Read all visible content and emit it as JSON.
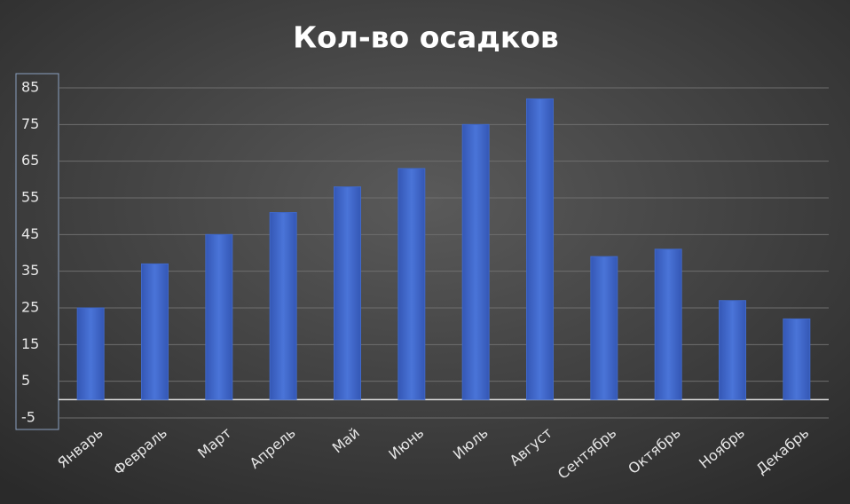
{
  "chart_data": {
    "type": "bar",
    "title": "Кол-во осадков",
    "categories": [
      "Январь",
      "Февраль",
      "Март",
      "Апрель",
      "Май",
      "Июнь",
      "Июль",
      "Август",
      "Сентябрь",
      "Октябрь",
      "Ноябрь",
      "Декабрь"
    ],
    "values": [
      25,
      37,
      45,
      51,
      58,
      63,
      75,
      82,
      39,
      41,
      27,
      22
    ],
    "color": "#4068c8",
    "ylim": [
      -5,
      85
    ],
    "yticks": [
      -5,
      5,
      15,
      25,
      35,
      45,
      55,
      65,
      75,
      85
    ],
    "grid": true
  }
}
